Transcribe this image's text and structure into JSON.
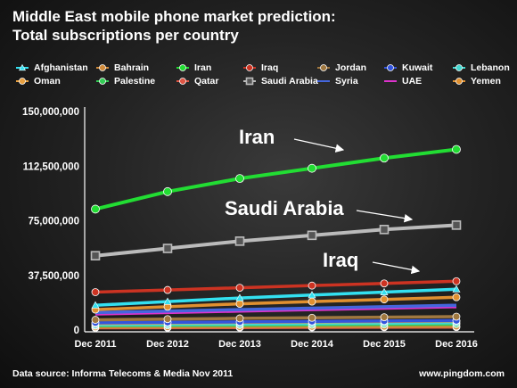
{
  "title_line1": "Middle East mobile phone market prediction:",
  "title_line2": "Total subscriptions per country",
  "footer_source": "Data source: Informa Telecoms & Media Nov 2011",
  "footer_site": "www.pingdom.com",
  "chart_data": {
    "type": "line",
    "title": "Middle East mobile phone market prediction: Total subscriptions per country",
    "x": [
      "Dec 2011",
      "Dec 2012",
      "Dec 2013",
      "Dec 2014",
      "Dec 2015",
      "Dec 2016"
    ],
    "ylim": [
      0,
      150000000
    ],
    "yticks": [
      "0",
      "37,500,000",
      "75,000,000",
      "112,500,000",
      "150,000,000"
    ],
    "ytick_values": [
      0,
      37500000,
      75000000,
      112500000,
      150000000
    ],
    "grid": false,
    "legend_position": "top",
    "annotations": [
      "Iran",
      "Saudi Arabia",
      "Iraq"
    ],
    "series": [
      {
        "name": "Afghanistan",
        "color": "#33e0f0",
        "marker": "triangle",
        "values": [
          17000000,
          19500000,
          22000000,
          24000000,
          26000000,
          28000000
        ]
      },
      {
        "name": "Bahrain",
        "color": "#d08a3a",
        "marker": "circle",
        "values": [
          2000000,
          2100000,
          2200000,
          2300000,
          2400000,
          2500000
        ]
      },
      {
        "name": "Iran",
        "color": "#22dd33",
        "marker": "circle",
        "values": [
          83000000,
          95000000,
          104000000,
          111000000,
          118000000,
          124000000
        ]
      },
      {
        "name": "Iraq",
        "color": "#cc3322",
        "marker": "circle",
        "values": [
          26000000,
          27500000,
          29000000,
          30500000,
          32000000,
          33500000
        ]
      },
      {
        "name": "Jordan",
        "color": "#a07840",
        "marker": "circle",
        "values": [
          7000000,
          7500000,
          8000000,
          8400000,
          8800000,
          9200000
        ]
      },
      {
        "name": "Kuwait",
        "color": "#3355dd",
        "marker": "circle",
        "values": [
          5000000,
          5300000,
          5600000,
          5900000,
          6200000,
          6500000
        ]
      },
      {
        "name": "Lebanon",
        "color": "#44d8d0",
        "marker": "circle",
        "values": [
          3500000,
          3800000,
          4100000,
          4400000,
          4700000,
          5000000
        ]
      },
      {
        "name": "Oman",
        "color": "#e8a040",
        "marker": "circle",
        "values": [
          4500000,
          4900000,
          5300000,
          5600000,
          5900000,
          6200000
        ]
      },
      {
        "name": "Palestine",
        "color": "#33cc55",
        "marker": "circle",
        "values": [
          3000000,
          3200000,
          3400000,
          3600000,
          3800000,
          4000000
        ]
      },
      {
        "name": "Qatar",
        "color": "#dd5544",
        "marker": "circle",
        "values": [
          1500000,
          1600000,
          1700000,
          1800000,
          1900000,
          2000000
        ]
      },
      {
        "name": "Saudi Arabia",
        "color": "#bbbbbb",
        "marker": "square",
        "values": [
          51000000,
          56000000,
          61000000,
          65000000,
          69000000,
          72000000
        ]
      },
      {
        "name": "Syria",
        "color": "#4466dd",
        "marker": "line",
        "values": [
          12000000,
          13000000,
          14000000,
          15000000,
          16000000,
          17000000
        ]
      },
      {
        "name": "UAE",
        "color": "#dd33cc",
        "marker": "line",
        "values": [
          11000000,
          12000000,
          13000000,
          14000000,
          15000000,
          16000000
        ]
      },
      {
        "name": "Yemen",
        "color": "#e09030",
        "marker": "circle",
        "values": [
          14000000,
          16000000,
          18000000,
          19500000,
          21000000,
          22500000
        ]
      }
    ]
  }
}
